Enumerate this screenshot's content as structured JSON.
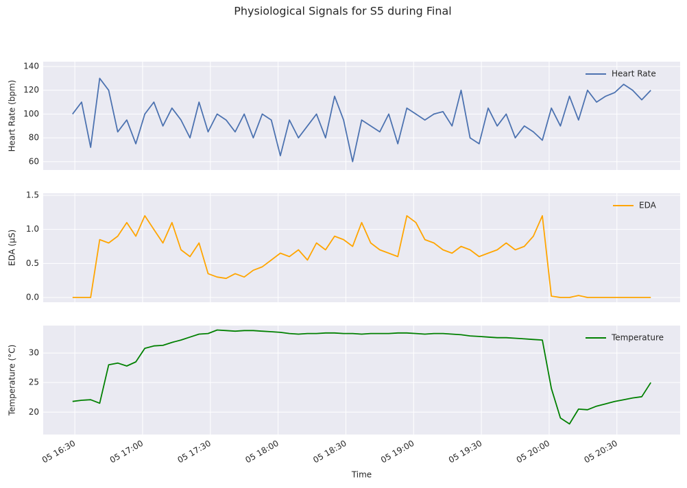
{
  "title": "Physiological Signals for S5 during Final",
  "chart_data": [
    {
      "type": "line",
      "ylabel": "Heart Rate (bpm)",
      "legend": "upper right",
      "xlim": [
        "05 16:16",
        "05 20:58"
      ],
      "ylim": [
        53,
        144
      ],
      "yticks": [
        60,
        80,
        100,
        120,
        140
      ],
      "grid": true,
      "x": [
        "05 16:29",
        "05 16:33",
        "05 16:37",
        "05 16:41",
        "05 16:45",
        "05 16:49",
        "05 16:53",
        "05 16:57",
        "05 17:01",
        "05 17:05",
        "05 17:09",
        "05 17:13",
        "05 17:17",
        "05 17:21",
        "05 17:25",
        "05 17:29",
        "05 17:33",
        "05 17:37",
        "05 17:41",
        "05 17:45",
        "05 17:49",
        "05 17:53",
        "05 17:57",
        "05 18:01",
        "05 18:05",
        "05 18:09",
        "05 18:13",
        "05 18:17",
        "05 18:21",
        "05 18:25",
        "05 18:29",
        "05 18:33",
        "05 18:37",
        "05 18:41",
        "05 18:45",
        "05 18:49",
        "05 18:53",
        "05 18:57",
        "05 19:01",
        "05 19:05",
        "05 19:09",
        "05 19:13",
        "05 19:17",
        "05 19:21",
        "05 19:25",
        "05 19:29",
        "05 19:33",
        "05 19:37",
        "05 19:41",
        "05 19:45",
        "05 19:49",
        "05 19:53",
        "05 19:57",
        "05 20:01",
        "05 20:05",
        "05 20:09",
        "05 20:13",
        "05 20:17",
        "05 20:21",
        "05 20:25",
        "05 20:29",
        "05 20:33",
        "05 20:37",
        "05 20:41",
        "05 20:45"
      ],
      "series": [
        {
          "name": "Heart Rate",
          "color": "#4c72b0",
          "values": [
            100,
            110,
            72,
            130,
            120,
            85,
            95,
            75,
            100,
            110,
            90,
            105,
            95,
            80,
            110,
            85,
            100,
            95,
            85,
            100,
            80,
            100,
            95,
            65,
            95,
            80,
            90,
            100,
            80,
            115,
            95,
            60,
            95,
            90,
            85,
            100,
            75,
            105,
            100,
            95,
            100,
            102,
            90,
            120,
            80,
            75,
            105,
            90,
            100,
            80,
            90,
            85,
            78,
            105,
            90,
            115,
            95,
            120,
            110,
            115,
            118,
            125,
            120,
            112,
            120
          ]
        }
      ]
    },
    {
      "type": "line",
      "ylabel": "EDA (µS)",
      "legend": "upper right",
      "xlim": [
        "05 16:16",
        "05 20:58"
      ],
      "ylim": [
        -0.07,
        1.53
      ],
      "yticks": [
        {
          "value": 0,
          "label": "0.0"
        },
        0.5,
        {
          "value": 1,
          "label": "1.0"
        },
        1.5
      ],
      "grid": true,
      "x": [
        "05 16:29",
        "05 16:33",
        "05 16:37",
        "05 16:41",
        "05 16:45",
        "05 16:49",
        "05 16:53",
        "05 16:57",
        "05 17:01",
        "05 17:05",
        "05 17:09",
        "05 17:13",
        "05 17:17",
        "05 17:21",
        "05 17:25",
        "05 17:29",
        "05 17:33",
        "05 17:37",
        "05 17:41",
        "05 17:45",
        "05 17:49",
        "05 17:53",
        "05 17:57",
        "05 18:01",
        "05 18:05",
        "05 18:09",
        "05 18:13",
        "05 18:17",
        "05 18:21",
        "05 18:25",
        "05 18:29",
        "05 18:33",
        "05 18:37",
        "05 18:41",
        "05 18:45",
        "05 18:49",
        "05 18:53",
        "05 18:57",
        "05 19:01",
        "05 19:05",
        "05 19:09",
        "05 19:13",
        "05 19:17",
        "05 19:21",
        "05 19:25",
        "05 19:29",
        "05 19:33",
        "05 19:37",
        "05 19:41",
        "05 19:45",
        "05 19:49",
        "05 19:53",
        "05 19:57",
        "05 20:01",
        "05 20:05",
        "05 20:09",
        "05 20:13",
        "05 20:17",
        "05 20:21",
        "05 20:25",
        "05 20:29",
        "05 20:33",
        "05 20:37",
        "05 20:41",
        "05 20:45"
      ],
      "series": [
        {
          "name": "EDA",
          "color": "#ffa500",
          "values": [
            0,
            0,
            0,
            0.85,
            0.8,
            0.9,
            1.1,
            0.9,
            1.2,
            1.0,
            0.8,
            1.1,
            0.7,
            0.6,
            0.8,
            0.35,
            0.3,
            0.28,
            0.35,
            0.3,
            0.4,
            0.45,
            0.55,
            0.65,
            0.6,
            0.7,
            0.55,
            0.8,
            0.7,
            0.9,
            0.85,
            0.75,
            1.1,
            0.8,
            0.7,
            0.65,
            0.6,
            1.2,
            1.1,
            0.85,
            0.8,
            0.7,
            0.65,
            0.75,
            0.7,
            0.6,
            0.65,
            0.7,
            0.8,
            0.7,
            0.75,
            0.9,
            1.2,
            0.02,
            0,
            0,
            0.03,
            0,
            0,
            0,
            0,
            0,
            0,
            0,
            0
          ]
        }
      ]
    },
    {
      "type": "line",
      "ylabel": "Temperature (°C)",
      "xlabel": "Time",
      "legend": "upper right",
      "xlim": [
        "05 16:16",
        "05 20:58"
      ],
      "xticks": [
        "05 16:30",
        "05 17:00",
        "05 17:30",
        "05 18:00",
        "05 18:30",
        "05 19:00",
        "05 19:30",
        "05 20:00",
        "05 20:30"
      ],
      "ylim": [
        16.2,
        34.65
      ],
      "yticks": [
        20,
        25,
        30
      ],
      "grid": true,
      "x": [
        "05 16:29",
        "05 16:33",
        "05 16:37",
        "05 16:41",
        "05 16:45",
        "05 16:49",
        "05 16:53",
        "05 16:57",
        "05 17:01",
        "05 17:05",
        "05 17:09",
        "05 17:13",
        "05 17:17",
        "05 17:21",
        "05 17:25",
        "05 17:29",
        "05 17:33",
        "05 17:37",
        "05 17:41",
        "05 17:45",
        "05 17:49",
        "05 17:53",
        "05 17:57",
        "05 18:01",
        "05 18:05",
        "05 18:09",
        "05 18:13",
        "05 18:17",
        "05 18:21",
        "05 18:25",
        "05 18:29",
        "05 18:33",
        "05 18:37",
        "05 18:41",
        "05 18:45",
        "05 18:49",
        "05 18:53",
        "05 18:57",
        "05 19:01",
        "05 19:05",
        "05 19:09",
        "05 19:13",
        "05 19:17",
        "05 19:21",
        "05 19:25",
        "05 19:29",
        "05 19:33",
        "05 19:37",
        "05 19:41",
        "05 19:45",
        "05 19:49",
        "05 19:53",
        "05 19:57",
        "05 20:01",
        "05 20:05",
        "05 20:09",
        "05 20:13",
        "05 20:17",
        "05 20:21",
        "05 20:25",
        "05 20:29",
        "05 20:33",
        "05 20:37",
        "05 20:41",
        "05 20:45"
      ],
      "series": [
        {
          "name": "Temperature",
          "color": "#008000",
          "values": [
            21.8,
            22,
            22.1,
            21.5,
            28,
            28.3,
            27.8,
            28.5,
            30.8,
            31.2,
            31.3,
            31.8,
            32.2,
            32.7,
            33.2,
            33.3,
            33.9,
            33.8,
            33.7,
            33.8,
            33.8,
            33.7,
            33.6,
            33.5,
            33.3,
            33.2,
            33.3,
            33.3,
            33.4,
            33.4,
            33.3,
            33.3,
            33.2,
            33.3,
            33.3,
            33.3,
            33.4,
            33.4,
            33.3,
            33.2,
            33.3,
            33.3,
            33.2,
            33.1,
            32.9,
            32.8,
            32.7,
            32.6,
            32.6,
            32.5,
            32.4,
            32.3,
            32.2,
            24,
            19,
            18,
            20.5,
            20.4,
            21,
            21.4,
            21.8,
            22.1,
            22.4,
            22.6,
            25
          ]
        }
      ]
    }
  ]
}
